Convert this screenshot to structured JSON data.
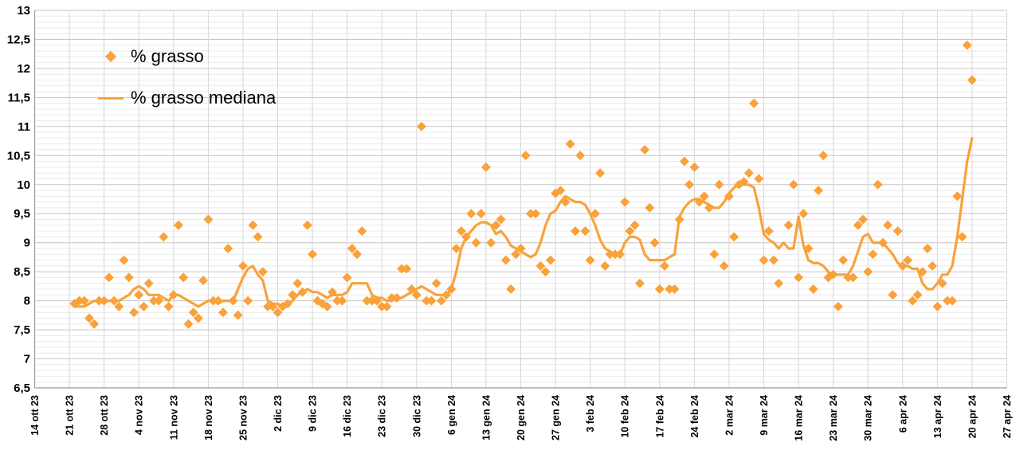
{
  "colors": {
    "accent_orange": "#F9A23B",
    "grid_minor": "#E9E9E9",
    "grid_major": "#C6C6C6",
    "grid_vertical": "#D7D7D7",
    "axis_line": "#9B9B9B",
    "text": "#000000",
    "background": "#FFFFFF"
  },
  "chart_data": {
    "type": "scatter",
    "title": "",
    "xlabel": "",
    "ylabel": "",
    "legend_position": "top-left-inside",
    "grid": "on",
    "x_axis": {
      "tick_interval_days": 7,
      "range_days": [
        0,
        196
      ],
      "tick_labels": [
        "14 ott 23",
        "21 ott 23",
        "28 ott 23",
        "4 nov 23",
        "11 nov 23",
        "18 nov 23",
        "25 nov 23",
        "2 dic 23",
        "9 dic 23",
        "16 dic 23",
        "23 dic 23",
        "30 dic 23",
        "6 gen 24",
        "13 gen 24",
        "20 gen 24",
        "27 gen 24",
        "3 feb 24",
        "10 feb 24",
        "17 feb 24",
        "24 feb 24",
        "2 mar 24",
        "9 mar 24",
        "16 mar 24",
        "23 mar 24",
        "30 mar 24",
        "6 apr 24",
        "13 apr 24",
        "20 apr 24",
        "27 apr 24"
      ]
    },
    "y_axis": {
      "min": 6.5,
      "max": 13,
      "major_step": 0.5,
      "minor_step": 0.1,
      "tick_labels": [
        "13",
        "12,5",
        "12",
        "11,5",
        "11",
        "10,5",
        "10",
        "9,5",
        "9",
        "8,5",
        "8",
        "7,5",
        "7",
        "6,5"
      ]
    },
    "series": [
      {
        "name": "% grasso",
        "type": "scatter",
        "marker": "diamond",
        "color": "#F9A23B",
        "start_day": 8,
        "values": [
          7.95,
          8.0,
          8.0,
          7.7,
          7.6,
          8.0,
          8.0,
          8.4,
          8.0,
          7.9,
          8.7,
          8.4,
          7.8,
          8.1,
          7.9,
          8.3,
          8.0,
          8.0,
          9.1,
          7.9,
          8.1,
          9.3,
          8.4,
          7.6,
          7.8,
          7.7,
          8.35,
          9.4,
          8.0,
          8.0,
          7.8,
          8.9,
          8.0,
          7.75,
          8.6,
          8.0,
          9.3,
          9.1,
          8.5,
          7.9,
          7.9,
          7.8,
          7.9,
          7.95,
          8.1,
          8.3,
          8.15,
          9.3,
          8.8,
          8.0,
          7.95,
          7.9,
          8.15,
          8.0,
          8.0,
          8.4,
          8.9,
          8.8,
          9.2,
          8.0,
          8.0,
          8.0,
          7.9,
          7.9,
          8.05,
          8.05,
          8.55,
          8.55,
          8.2,
          8.1,
          11.0,
          8.0,
          8.0,
          8.3,
          8.0,
          8.1,
          8.2,
          8.9,
          9.2,
          9.1,
          9.5,
          9.0,
          9.5,
          10.3,
          9.0,
          9.3,
          9.4,
          8.7,
          8.2,
          8.8,
          8.9,
          10.5,
          9.5,
          9.5,
          8.6,
          8.5,
          8.7,
          9.85,
          9.9,
          9.7,
          10.7,
          9.2,
          10.5,
          9.2,
          8.7,
          9.5,
          10.2,
          8.6,
          8.8,
          8.8,
          8.8,
          9.7,
          9.2,
          9.3,
          8.3,
          10.6,
          9.6,
          9.0,
          8.2,
          8.6,
          8.2,
          8.2,
          9.4,
          10.4,
          10.0,
          10.3,
          9.7,
          9.8,
          9.6,
          8.8,
          10.0,
          8.6,
          9.8,
          9.1,
          10.0,
          10.05,
          10.2,
          11.4,
          10.1,
          8.7,
          9.2,
          8.7,
          8.3,
          null,
          9.3,
          10.0,
          8.4,
          9.5,
          8.9,
          8.2,
          9.9,
          10.5,
          8.4,
          8.45,
          7.9,
          8.7,
          8.4,
          8.4,
          9.3,
          9.4,
          8.5,
          8.8,
          10.0,
          9.0,
          9.3,
          8.1,
          9.2,
          8.6,
          8.7,
          8.0,
          8.1,
          8.5,
          8.9,
          8.6,
          7.9,
          8.3,
          8.0,
          8.0,
          9.8,
          9.1,
          12.4,
          11.8
        ]
      },
      {
        "name": "% grasso mediana",
        "type": "line",
        "color": "#F9A23B",
        "start_day": 8,
        "values": [
          7.9,
          7.9,
          7.9,
          7.95,
          8.0,
          8.0,
          8.0,
          8.0,
          8.0,
          8.0,
          8.05,
          8.1,
          8.2,
          8.25,
          8.2,
          8.1,
          8.1,
          8.1,
          8.05,
          8.0,
          8.1,
          8.1,
          8.05,
          8.0,
          7.95,
          7.9,
          7.95,
          8.0,
          8.0,
          7.95,
          8.0,
          8.0,
          8.0,
          8.2,
          8.4,
          8.55,
          8.6,
          8.45,
          8.35,
          8.0,
          7.95,
          7.95,
          7.9,
          7.95,
          8.0,
          8.1,
          8.15,
          8.2,
          8.15,
          8.15,
          8.1,
          8.05,
          8.1,
          8.1,
          8.1,
          8.15,
          8.3,
          8.3,
          8.3,
          8.3,
          8.1,
          8.05,
          8.05,
          8.0,
          8.0,
          8.05,
          8.05,
          8.1,
          8.15,
          8.2,
          8.25,
          8.2,
          8.15,
          8.1,
          8.1,
          8.1,
          8.2,
          8.5,
          8.9,
          9.1,
          9.2,
          9.3,
          9.35,
          9.35,
          9.3,
          9.15,
          9.2,
          9.1,
          8.95,
          8.9,
          8.85,
          8.8,
          8.75,
          8.8,
          9.0,
          9.3,
          9.5,
          9.55,
          9.7,
          9.8,
          9.75,
          9.7,
          9.7,
          9.65,
          9.5,
          9.3,
          9.05,
          8.9,
          8.85,
          8.8,
          8.8,
          9.0,
          9.1,
          9.1,
          9.05,
          8.8,
          8.7,
          8.7,
          8.7,
          8.7,
          8.75,
          8.8,
          9.45,
          9.6,
          9.7,
          9.75,
          9.75,
          9.7,
          9.65,
          9.6,
          9.6,
          9.7,
          9.85,
          9.95,
          10.0,
          10.0,
          10.0,
          9.95,
          9.6,
          9.15,
          9.05,
          9.0,
          8.9,
          9.0,
          8.9,
          8.9,
          9.45,
          8.95,
          8.7,
          8.65,
          8.65,
          8.6,
          8.5,
          8.45,
          8.45,
          8.45,
          8.45,
          8.6,
          8.85,
          9.1,
          9.15,
          9.0,
          9.0,
          9.0,
          8.9,
          8.8,
          8.65,
          8.6,
          8.6,
          8.55,
          8.55,
          8.3,
          8.2,
          8.2,
          8.3,
          8.45,
          8.45,
          8.6,
          9.1,
          9.75,
          10.4,
          10.8
        ]
      }
    ]
  }
}
